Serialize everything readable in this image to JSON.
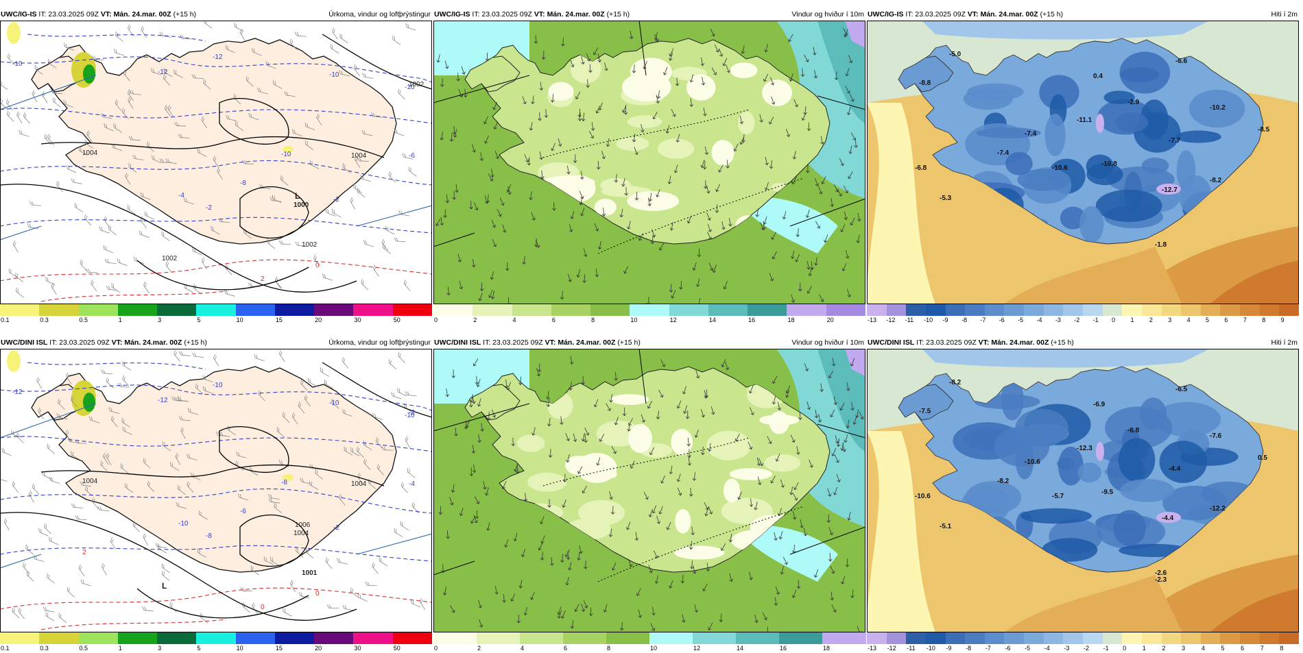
{
  "colors": {
    "precip": [
      "#f7f37a",
      "#d7d43a",
      "#9ee35c",
      "#18a31c",
      "#0a6a3a",
      "#18f0e0",
      "#2b63f0",
      "#0d1c9e",
      "#6a0a7a",
      "#ee1188",
      "#ee0011"
    ],
    "wind": [
      "#fbfde6",
      "#e6f3b8",
      "#c9e68f",
      "#a8d264",
      "#88bf48",
      "#aefaf8",
      "#82d8d5",
      "#5cbcba",
      "#3a9b98",
      "#c2aaf0",
      "#a48ae0",
      "#8a6acb"
    ],
    "temp": [
      "#c9b1ee",
      "#a392de",
      "#2d5ea8",
      "#1e5aa7",
      "#3c6eb8",
      "#4a7cc1",
      "#5b8ccb",
      "#6b9bd3",
      "#7aa9db",
      "#8db7e2",
      "#a2c6ea",
      "#b9d7f0",
      "#d8e7d2",
      "#fdf6b3",
      "#fae79a",
      "#f3d882",
      "#ecc56c",
      "#e4ae56",
      "#dc9a45",
      "#d68a38",
      "#d07a2e",
      "#c96a26"
    ]
  },
  "icons": {
    "low_marker": "pressure-low-label"
  },
  "panels": [
    {
      "id": "top-precip",
      "model": "UWC/IG-IS",
      "it": "IT: 23.03.2025 09Z",
      "vt_label": "VT:",
      "vt": "Mán. 24.mar. 00Z",
      "lead": "(+15 h)",
      "title": "Úrkoma, vindur og loftþrýstingur",
      "kind": "precip",
      "ticks": [
        "0.1",
        "0.3",
        "0.5",
        "1",
        "3",
        "5",
        "10",
        "15",
        "20",
        "30",
        "50"
      ],
      "labels": [
        {
          "t": "-10",
          "k": "blue"
        },
        {
          "t": "-12",
          "k": "blue"
        },
        {
          "t": "-12",
          "k": "blue"
        },
        {
          "t": "-10",
          "k": "blue"
        },
        {
          "t": "-10",
          "k": "blue"
        },
        {
          "t": "-10",
          "k": "blue"
        },
        {
          "t": "-8",
          "k": "blue"
        },
        {
          "t": "-4",
          "k": "blue"
        },
        {
          "t": "-2",
          "k": "blue"
        },
        {
          "t": "-2",
          "k": "blue"
        },
        {
          "t": "-6",
          "k": "blue"
        },
        {
          "t": "1002",
          "k": "black"
        },
        {
          "t": "1004",
          "k": "black"
        },
        {
          "t": "1004",
          "k": "black"
        },
        {
          "t": "L",
          "k": "low"
        },
        {
          "t": "1000",
          "k": "low"
        },
        {
          "t": "1002",
          "k": "black"
        },
        {
          "t": "1002",
          "k": "black"
        },
        {
          "t": "0",
          "k": "red"
        },
        {
          "t": "2",
          "k": "red"
        }
      ]
    },
    {
      "id": "top-wind",
      "model": "UWC/IG-IS",
      "it": "IT: 23.03.2025 09Z",
      "vt_label": "VT:",
      "vt": "Mán. 24.mar. 00Z",
      "lead": "(+15 h)",
      "title": "Vindur og hviður í 10m",
      "kind": "wind",
      "ticks": [
        "0",
        "2",
        "4",
        "6",
        "8",
        "10",
        "12",
        "14",
        "16",
        "18",
        "20"
      ],
      "labels": []
    },
    {
      "id": "top-temp",
      "model": "UWC/IG-IS",
      "it": "IT: 23.03.2025 09Z",
      "vt_label": "VT:",
      "vt": "Mán. 24.mar. 00Z",
      "lead": "(+15 h)",
      "title": "Hiti í 2m",
      "kind": "temp",
      "ticks": [
        "-13",
        "-12",
        "-11",
        "-10",
        "-9",
        "-8",
        "-7",
        "-6",
        "-5",
        "-4",
        "-3",
        "-2",
        "-1",
        "0",
        "1",
        "2",
        "3",
        "4",
        "5",
        "6",
        "7",
        "8",
        "9"
      ],
      "labels": [
        {
          "t": "-5.0"
        },
        {
          "t": "-6.6"
        },
        {
          "t": "-8.8"
        },
        {
          "t": "0.4"
        },
        {
          "t": "-2.9"
        },
        {
          "t": "-10.2"
        },
        {
          "t": "-11.1"
        },
        {
          "t": "-7.4"
        },
        {
          "t": "-8.5"
        },
        {
          "t": "-7.7"
        },
        {
          "t": "-7.4"
        },
        {
          "t": "-10.6"
        },
        {
          "t": "-10.8"
        },
        {
          "t": "-6.8"
        },
        {
          "t": "-8.2"
        },
        {
          "t": "-12.7"
        },
        {
          "t": "-5.3"
        },
        {
          "t": "-1.8"
        }
      ]
    },
    {
      "id": "bot-precip",
      "model": "UWC/DINI ISL",
      "it": "IT: 23.03.2025 09Z",
      "vt_label": "VT:",
      "vt": "Mán. 24.mar. 00Z",
      "lead": "(+15 h)",
      "title": "Úrkoma, vindur og loftþrýstingur",
      "kind": "precip",
      "ticks": [
        "0.1",
        "0.3",
        "0.5",
        "1",
        "3",
        "5",
        "10",
        "15",
        "20",
        "30",
        "50"
      ],
      "labels": [
        {
          "t": "-12",
          "k": "blue"
        },
        {
          "t": "-10",
          "k": "blue"
        },
        {
          "t": "-12",
          "k": "blue"
        },
        {
          "t": "-10",
          "k": "blue"
        },
        {
          "t": "-10",
          "k": "blue"
        },
        {
          "t": "-8",
          "k": "blue"
        },
        {
          "t": "-6",
          "k": "blue"
        },
        {
          "t": "-10",
          "k": "blue"
        },
        {
          "t": "-8",
          "k": "blue"
        },
        {
          "t": "-2",
          "k": "blue"
        },
        {
          "t": "-4",
          "k": "blue"
        },
        {
          "t": "-2",
          "k": "blue"
        },
        {
          "t": "1004",
          "k": "black"
        },
        {
          "t": "1004",
          "k": "black"
        },
        {
          "t": "1006",
          "k": "black"
        },
        {
          "t": "1004",
          "k": "black"
        },
        {
          "t": "L",
          "k": "low"
        },
        {
          "t": "1001",
          "k": "low"
        },
        {
          "t": "0",
          "k": "red"
        },
        {
          "t": "0",
          "k": "red"
        },
        {
          "t": "2",
          "k": "red"
        }
      ]
    },
    {
      "id": "bot-wind",
      "model": "UWC/DINI ISL",
      "it": "IT: 23.03.2025 09Z",
      "vt_label": "VT:",
      "vt": "Mán. 24.mar. 00Z",
      "lead": "(+15 h)",
      "title": "Vindur og hviður í 10m",
      "kind": "wind",
      "ticks": [
        "0",
        "2",
        "4",
        "6",
        "8",
        "10",
        "12",
        "14",
        "16",
        "18"
      ],
      "labels": []
    },
    {
      "id": "bot-temp",
      "model": "UWC/DINI ISL",
      "it": "IT: 23.03.2025 09Z",
      "vt_label": "VT:",
      "vt": "Mán. 24.mar. 00Z",
      "lead": "(+15 h)",
      "title": "Hiti í 2m",
      "kind": "temp",
      "ticks": [
        "-13",
        "-12",
        "-11",
        "-10",
        "-9",
        "-8",
        "-7",
        "-6",
        "-5",
        "-4",
        "-3",
        "-2",
        "-1",
        "0",
        "1",
        "2",
        "3",
        "4",
        "5",
        "6",
        "7",
        "8"
      ],
      "labels": [
        {
          "t": "-8.2"
        },
        {
          "t": "-6.5"
        },
        {
          "t": "-7.5"
        },
        {
          "t": "-6.9"
        },
        {
          "t": "-6.8"
        },
        {
          "t": "-7.6"
        },
        {
          "t": "-12.3"
        },
        {
          "t": "-10.6"
        },
        {
          "t": "0.5"
        },
        {
          "t": "-4.4"
        },
        {
          "t": "-8.2"
        },
        {
          "t": "-5.7"
        },
        {
          "t": "-9.5"
        },
        {
          "t": "-10.6"
        },
        {
          "t": "-12.2"
        },
        {
          "t": "-4.4"
        },
        {
          "t": "-5.1"
        },
        {
          "t": "-2.6"
        },
        {
          "t": "-2.3"
        }
      ]
    }
  ]
}
